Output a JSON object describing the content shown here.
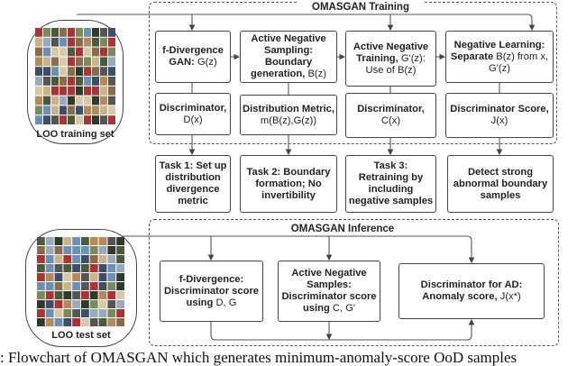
{
  "training": {
    "title": "OMASGAN Training",
    "top_boxes": [
      {
        "bold": "f-Divergence GAN:",
        "normal": "G(z)"
      },
      {
        "bold": "Active Negative Sampling: Boundary generation,",
        "normal": "B(z)"
      },
      {
        "bold": "Active Negative Training,",
        "normal": "G'(z): Use of B(z)"
      },
      {
        "bold": "Negative Learning: Separate",
        "normal": "B(z) from x, G'(z)"
      }
    ],
    "bottom_boxes": [
      {
        "bold": "Discriminator,",
        "normal": "D(x)"
      },
      {
        "bold": "Distribution Metric,",
        "normal": "m(B(z),G(z))"
      },
      {
        "bold": "Discriminator,",
        "normal": "C(x)"
      },
      {
        "bold": "Discriminator Score,",
        "normal": "J(x)"
      }
    ],
    "set_label": "LOO training set"
  },
  "tasks": [
    "Task 1: Set up distribution divergence metric",
    "Task 2: Boundary formation; No invertibility",
    "Task 3: Retraining by including negative samples",
    "Detect strong abnormal boundary samples"
  ],
  "inference": {
    "title": "OMASGAN Inference",
    "boxes": [
      {
        "bold": "f-Divergence: Discriminator score using",
        "normal": "D, G"
      },
      {
        "bold": "Active Negative Samples: Discriminator score using",
        "normal": "C, G'"
      },
      {
        "bold": "Discriminator for AD: Anomaly score,",
        "normal": "J(x*)"
      }
    ],
    "set_label": "LOO test set"
  },
  "caption": ": Flowchart of OMASGAN which generates minimum-anomaly-score OoD samples"
}
